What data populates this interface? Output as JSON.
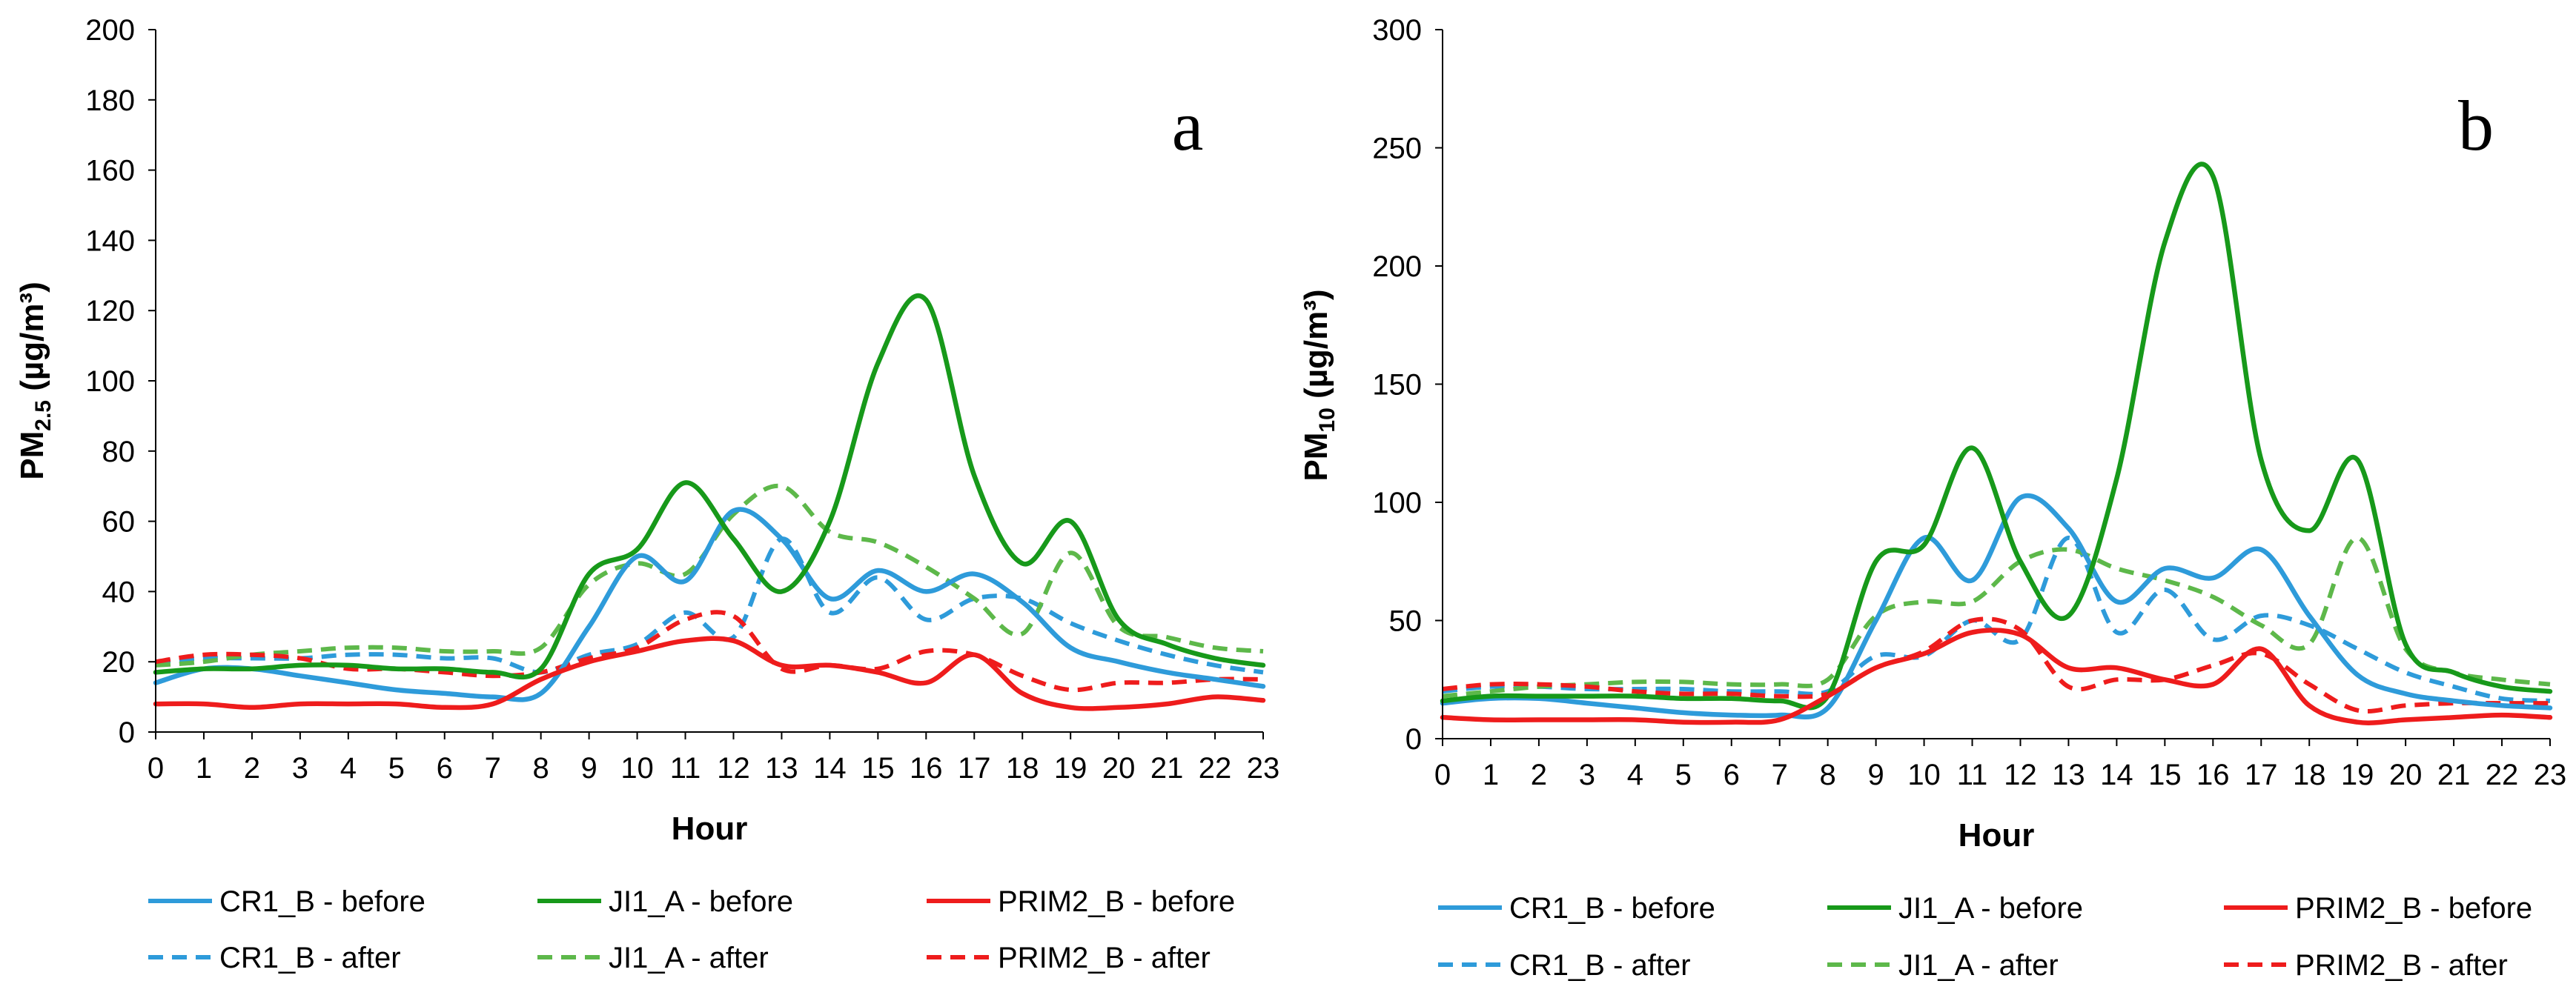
{
  "chart_data": [
    {
      "type": "line",
      "panel_label": "a",
      "title": "",
      "xlabel": "Hour",
      "ylabel_main": "PM",
      "ylabel_sub": "2.5",
      "ylabel_unit": " (µg/m³)",
      "x": [
        0,
        1,
        2,
        3,
        4,
        5,
        6,
        7,
        8,
        9,
        10,
        11,
        12,
        13,
        14,
        15,
        16,
        17,
        18,
        19,
        20,
        21,
        22,
        23
      ],
      "xlim": [
        0,
        23
      ],
      "ylim": [
        0,
        200
      ],
      "yticks": [
        0,
        20,
        40,
        60,
        80,
        100,
        120,
        140,
        160,
        180,
        200
      ],
      "xticks": [
        0,
        1,
        2,
        3,
        4,
        5,
        6,
        7,
        8,
        9,
        10,
        11,
        12,
        13,
        14,
        15,
        16,
        17,
        18,
        19,
        20,
        21,
        22,
        23
      ],
      "grid": false,
      "legend_position": "bottom",
      "series": [
        {
          "name": "CR1_B - before",
          "color": "#2E9BDA",
          "dash": "solid",
          "values": [
            14,
            18,
            18,
            16,
            14,
            12,
            11,
            10,
            11,
            30,
            50,
            43,
            63,
            55,
            38,
            46,
            40,
            45,
            37,
            24,
            20,
            17,
            15,
            13
          ]
        },
        {
          "name": "JI1_A - before",
          "color": "#17991A",
          "dash": "solid",
          "values": [
            17,
            18,
            18,
            19,
            19,
            18,
            18,
            17,
            18,
            45,
            52,
            71,
            55,
            40,
            60,
            105,
            123,
            73,
            48,
            60,
            32,
            25,
            21,
            19
          ]
        },
        {
          "name": "PRIM2_B - before",
          "color": "#EE1C1C",
          "dash": "solid",
          "values": [
            8,
            8,
            7,
            8,
            8,
            8,
            7,
            8,
            15,
            20,
            23,
            26,
            26,
            19,
            19,
            17,
            14,
            22,
            11,
            7,
            7,
            8,
            10,
            9
          ]
        },
        {
          "name": "CR1_B - after",
          "color": "#2E9BDA",
          "dash": "dashed",
          "values": [
            20,
            21,
            21,
            21,
            22,
            22,
            21,
            21,
            17,
            22,
            25,
            34,
            27,
            55,
            34,
            44,
            32,
            38,
            38,
            31,
            26,
            22,
            19,
            17
          ]
        },
        {
          "name": "JI1_A - after",
          "color": "#5DB84A",
          "dash": "dashed",
          "values": [
            19,
            20,
            22,
            23,
            24,
            24,
            23,
            23,
            24,
            42,
            48,
            45,
            62,
            70,
            57,
            54,
            47,
            38,
            28,
            51,
            30,
            27,
            24,
            23
          ]
        },
        {
          "name": "PRIM2_B - after",
          "color": "#EE1C1C",
          "dash": "dashed",
          "values": [
            20,
            22,
            22,
            21,
            18,
            18,
            17,
            16,
            17,
            21,
            24,
            32,
            33,
            18,
            19,
            18,
            23,
            22,
            16,
            12,
            14,
            14,
            15,
            15
          ]
        }
      ]
    },
    {
      "type": "line",
      "panel_label": "b",
      "title": "",
      "xlabel": "Hour",
      "ylabel_main": "PM",
      "ylabel_sub": "10",
      "ylabel_unit": " (µg/m³)",
      "x": [
        0,
        1,
        2,
        3,
        4,
        5,
        6,
        7,
        8,
        9,
        10,
        11,
        12,
        13,
        14,
        15,
        16,
        17,
        18,
        19,
        20,
        21,
        22,
        23
      ],
      "xlim": [
        0,
        23
      ],
      "ylim": [
        0,
        300
      ],
      "yticks": [
        0,
        50,
        100,
        150,
        200,
        250,
        300
      ],
      "xticks": [
        0,
        1,
        2,
        3,
        4,
        5,
        6,
        7,
        8,
        9,
        10,
        11,
        12,
        13,
        14,
        15,
        16,
        17,
        18,
        19,
        20,
        21,
        22,
        23
      ],
      "grid": false,
      "legend_position": "bottom",
      "series": [
        {
          "name": "CR1_B - before",
          "color": "#2E9BDA",
          "dash": "solid",
          "values": [
            15,
            17,
            17,
            15,
            13,
            11,
            10,
            10,
            13,
            50,
            85,
            67,
            102,
            89,
            58,
            72,
            68,
            80,
            52,
            27,
            19,
            16,
            14,
            13
          ]
        },
        {
          "name": "JI1_A - before",
          "color": "#17991A",
          "dash": "solid",
          "values": [
            16,
            18,
            18,
            18,
            18,
            17,
            17,
            16,
            18,
            75,
            82,
            123,
            75,
            52,
            110,
            210,
            238,
            118,
            88,
            118,
            40,
            28,
            22,
            20
          ]
        },
        {
          "name": "PRIM2_B - before",
          "color": "#EE1C1C",
          "dash": "solid",
          "values": [
            9,
            8,
            8,
            8,
            8,
            7,
            7,
            8,
            18,
            30,
            36,
            45,
            44,
            30,
            30,
            25,
            23,
            38,
            14,
            7,
            8,
            9,
            10,
            9
          ]
        },
        {
          "name": "CR1_B - after",
          "color": "#2E9BDA",
          "dash": "dashed",
          "values": [
            20,
            22,
            22,
            21,
            21,
            21,
            20,
            20,
            20,
            35,
            35,
            50,
            42,
            85,
            45,
            63,
            42,
            52,
            48,
            38,
            28,
            22,
            17,
            16
          ]
        },
        {
          "name": "JI1_A - after",
          "color": "#5DB84A",
          "dash": "dashed",
          "values": [
            18,
            20,
            22,
            23,
            24,
            24,
            23,
            23,
            25,
            52,
            58,
            58,
            75,
            80,
            72,
            67,
            60,
            48,
            40,
            85,
            38,
            28,
            25,
            23
          ]
        },
        {
          "name": "PRIM2_B - after",
          "color": "#EE1C1C",
          "dash": "dashed",
          "values": [
            21,
            23,
            23,
            22,
            20,
            19,
            19,
            18,
            19,
            30,
            37,
            50,
            46,
            22,
            25,
            25,
            31,
            36,
            23,
            12,
            14,
            15,
            15,
            15
          ]
        }
      ]
    }
  ]
}
